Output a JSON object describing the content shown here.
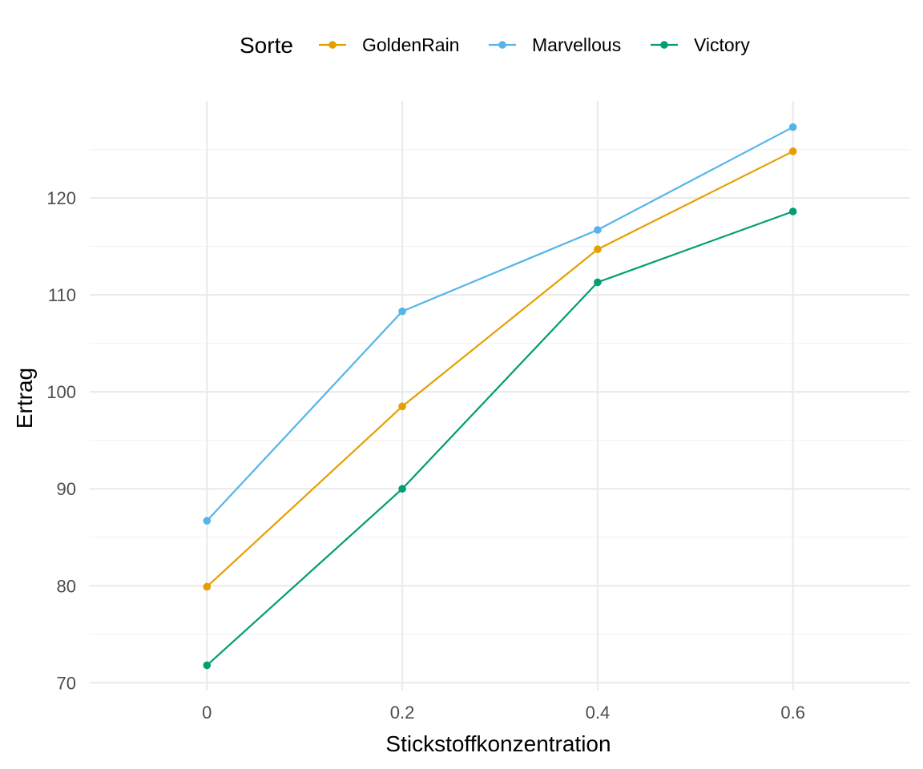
{
  "chart_data": {
    "type": "line",
    "xlabel": "Stickstoffkonzentration",
    "ylabel": "Ertrag",
    "x": [
      0,
      0.2,
      0.4,
      0.6
    ],
    "x_tick_labels": [
      "0",
      "0.2",
      "0.4",
      "0.6"
    ],
    "y_ticks": [
      70,
      80,
      90,
      100,
      110,
      120
    ],
    "y_tick_labels": [
      "70",
      "80",
      "90",
      "100",
      "110",
      "120"
    ],
    "xlim": [
      -0.12,
      0.72
    ],
    "ylim": [
      69.2,
      130
    ],
    "grid": true,
    "legend": {
      "title": "Sorte",
      "position": "top"
    },
    "series": [
      {
        "name": "GoldenRain",
        "color": "#E69F00",
        "values": [
          79.9,
          98.5,
          114.7,
          124.8
        ]
      },
      {
        "name": "Marvellous",
        "color": "#56B4E9",
        "values": [
          86.7,
          108.3,
          116.7,
          127.3
        ]
      },
      {
        "name": "Victory",
        "color": "#009E73",
        "values": [
          71.8,
          90.0,
          111.3,
          118.6
        ]
      }
    ]
  }
}
